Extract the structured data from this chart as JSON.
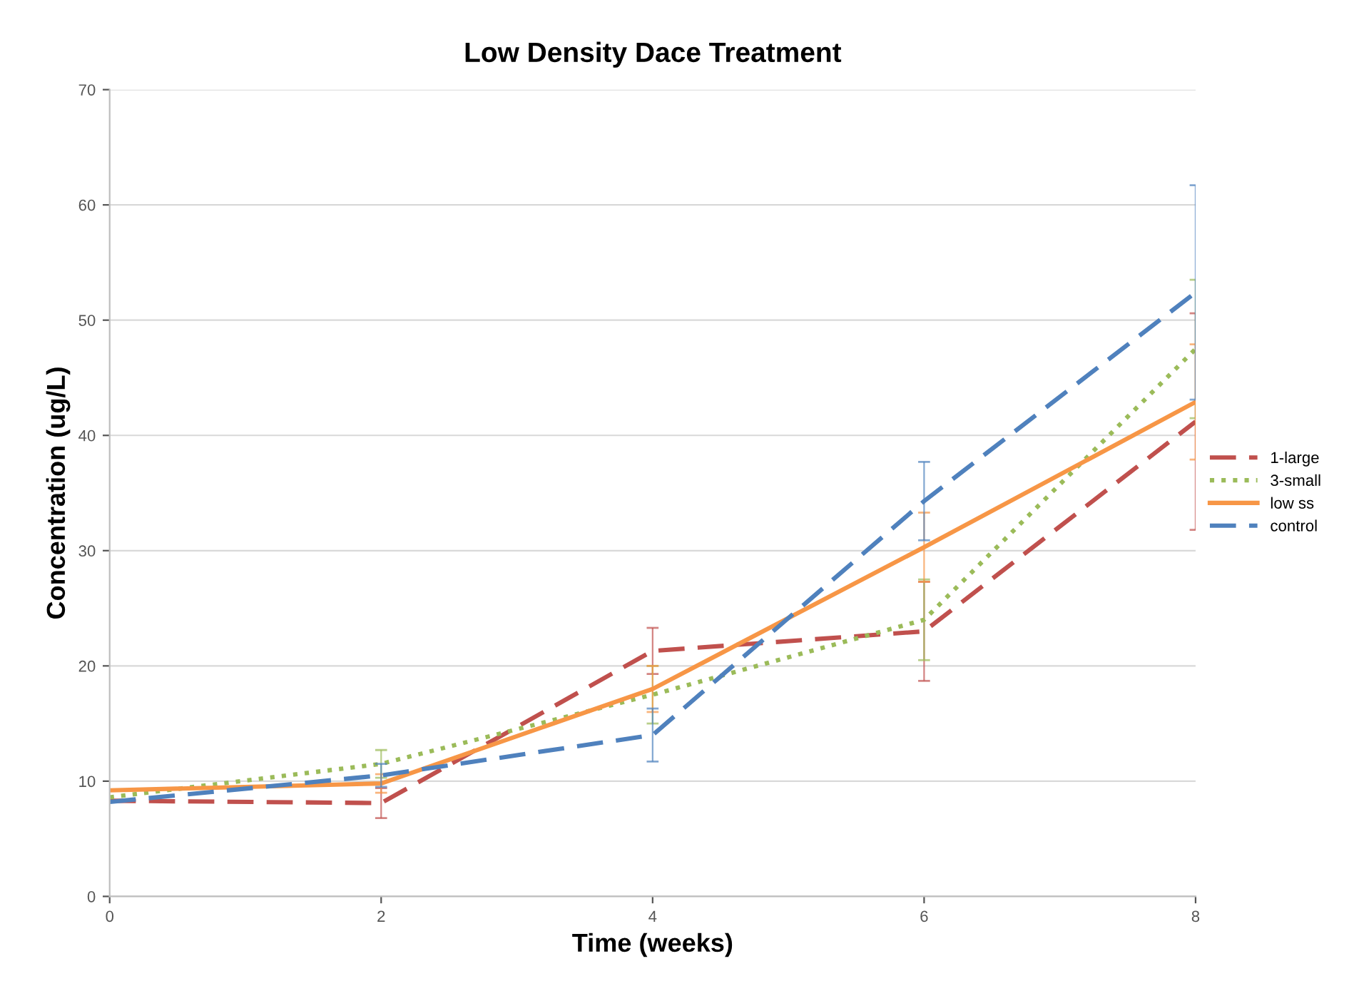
{
  "chart_data": {
    "type": "line",
    "title": "Low Density Dace Treatment",
    "xlabel": "Time (weeks)",
    "ylabel": "Concentration (ug/L)",
    "x": [
      0,
      2,
      4,
      6,
      8
    ],
    "xlim": [
      0,
      8
    ],
    "xticks": [
      0,
      2,
      4,
      6,
      8
    ],
    "ylim": [
      0,
      70
    ],
    "yticks": [
      0,
      10,
      20,
      30,
      40,
      50,
      60,
      70
    ],
    "grid": "y",
    "legend": "right",
    "marker": "none",
    "series": [
      {
        "name": "1-large",
        "color": "#c0504d",
        "line_style": "dashed",
        "values": [
          8.3,
          8.1,
          21.3,
          23.0,
          41.2
        ],
        "errors": [
          null,
          1.3,
          2.0,
          4.3,
          9.4
        ]
      },
      {
        "name": "3-small",
        "color": "#9bbb59",
        "line_style": "dotted",
        "values": [
          8.6,
          11.5,
          17.5,
          24.0,
          47.5
        ],
        "errors": [
          null,
          1.2,
          2.5,
          3.5,
          6.0
        ]
      },
      {
        "name": "low ss",
        "color": "#f79646",
        "line_style": "solid",
        "values": [
          9.2,
          9.8,
          18.0,
          30.3,
          42.9
        ],
        "errors": [
          null,
          0.8,
          2.0,
          3.0,
          5.0
        ]
      },
      {
        "name": "control",
        "color": "#4f81bd",
        "line_style": "dashed",
        "values": [
          8.2,
          10.5,
          14.0,
          34.3,
          52.4
        ],
        "errors": [
          null,
          1.0,
          2.3,
          3.4,
          9.3
        ]
      }
    ]
  }
}
